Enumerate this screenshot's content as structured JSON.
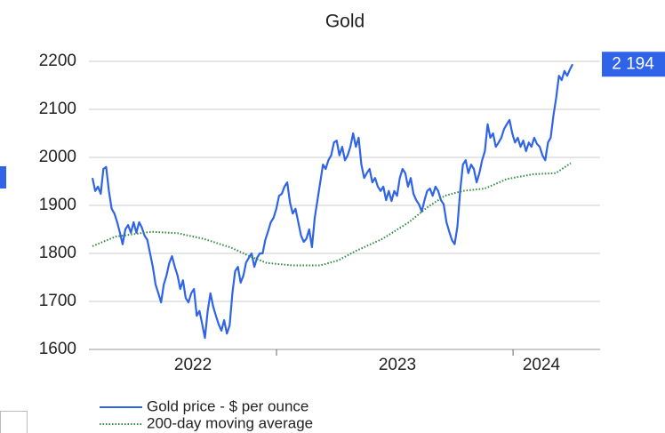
{
  "chart_data": {
    "type": "line",
    "title": "Gold",
    "ylim": [
      1600,
      2200
    ],
    "yticks": [
      1600,
      1700,
      1800,
      1900,
      2000,
      2100,
      2200
    ],
    "grid": true,
    "xlim": [
      2022.207,
      2024.368
    ],
    "xticks": [
      {
        "value": 2022.647,
        "label": "2022"
      },
      {
        "value": 2023.511,
        "label": "2023"
      },
      {
        "value": 2024.12,
        "label": "2024"
      }
    ],
    "xminor": [
      2023,
      2024
    ],
    "series": [
      {
        "name": "Gold price - $ per ounce",
        "color": "#2f64e8",
        "style": "solid",
        "last_value_label": "2 194",
        "x": [
          2022.222,
          2022.2336,
          2022.2452,
          2022.2568,
          2022.2684,
          2022.28,
          2022.2916,
          2022.3032,
          2022.3148,
          2022.3264,
          2022.338,
          2022.3496,
          2022.3612,
          2022.3728,
          2022.3844,
          2022.396,
          2022.4076,
          2022.4192,
          2022.4308,
          2022.4424,
          2022.454,
          2022.4656,
          2022.4772,
          2022.4888,
          2022.5004,
          2022.512,
          2022.5236,
          2022.5352,
          2022.5468,
          2022.5584,
          2022.57,
          2022.5816,
          2022.5932,
          2022.6048,
          2022.6164,
          2022.628,
          2022.6396,
          2022.6512,
          2022.6628,
          2022.6744,
          2022.686,
          2022.6976,
          2022.7092,
          2022.7208,
          2022.7324,
          2022.744,
          2022.7556,
          2022.7672,
          2022.7788,
          2022.7904,
          2022.802,
          2022.8136,
          2022.8252,
          2022.8368,
          2022.8484,
          2022.86,
          2022.8716,
          2022.8832,
          2022.8948,
          2022.9064,
          2022.918,
          2022.9296,
          2022.9412,
          2022.9528,
          2022.9644,
          2022.976,
          2022.9876,
          2022.9992,
          2023.0108,
          2023.0224,
          2023.034,
          2023.0456,
          2023.0572,
          2023.0688,
          2023.0804,
          2023.092,
          2023.1036,
          2023.1152,
          2023.1268,
          2023.1384,
          2023.15,
          2023.1616,
          2023.1732,
          2023.1848,
          2023.1964,
          2023.208,
          2023.2196,
          2023.2312,
          2023.2428,
          2023.2544,
          2023.266,
          2023.2776,
          2023.2892,
          2023.3008,
          2023.3124,
          2023.324,
          2023.3356,
          2023.3472,
          2023.3588,
          2023.3704,
          2023.382,
          2023.3936,
          2023.4052,
          2023.4168,
          2023.4284,
          2023.44,
          2023.4516,
          2023.4632,
          2023.4748,
          2023.4864,
          2023.498,
          2023.5096,
          2023.5212,
          2023.5328,
          2023.5444,
          2023.556,
          2023.5676,
          2023.5792,
          2023.5908,
          2023.6024,
          2023.614,
          2023.6256,
          2023.6372,
          2023.6488,
          2023.6604,
          2023.672,
          2023.6836,
          2023.6952,
          2023.7068,
          2023.7184,
          2023.73,
          2023.7416,
          2023.7532,
          2023.7648,
          2023.7764,
          2023.788,
          2023.7996,
          2023.8112,
          2023.8228,
          2023.8344,
          2023.846,
          2023.8576,
          2023.8692,
          2023.8808,
          2023.8924,
          2023.904,
          2023.9156,
          2023.9272,
          2023.9388,
          2023.9504,
          2023.962,
          2023.9736,
          2023.9852,
          2023.9968,
          2024.0084,
          2024.02,
          2024.0316,
          2024.0432,
          2024.0548,
          2024.0664,
          2024.078,
          2024.0896,
          2024.1012,
          2024.1128,
          2024.1244,
          2024.136,
          2024.1476,
          2024.1592,
          2024.1708,
          2024.1824,
          2024.194,
          2024.2056,
          2024.2172,
          2024.2288,
          2024.2404,
          2024.252
        ],
        "values": [
          1957,
          1930,
          1939,
          1924,
          1976,
          1980,
          1930,
          1893,
          1883,
          1865,
          1843,
          1819,
          1850,
          1859,
          1843,
          1865,
          1843,
          1865,
          1854,
          1837,
          1828,
          1800,
          1772,
          1735,
          1717,
          1698,
          1735,
          1754,
          1780,
          1794,
          1772,
          1754,
          1726,
          1744,
          1707,
          1698,
          1717,
          1726,
          1670,
          1680,
          1652,
          1624,
          1680,
          1717,
          1689,
          1670,
          1652,
          1639,
          1661,
          1633,
          1650,
          1717,
          1763,
          1772,
          1739,
          1754,
          1781,
          1791,
          1800,
          1772,
          1791,
          1800,
          1800,
          1828,
          1846,
          1865,
          1874,
          1893,
          1920,
          1924,
          1939,
          1948,
          1906,
          1883,
          1893,
          1865,
          1837,
          1824,
          1831,
          1850,
          1813,
          1874,
          1911,
          1948,
          1985,
          1976,
          1994,
          2004,
          2031,
          2035,
          2004,
          2022,
          1994,
          2004,
          2022,
          2050,
          2022,
          2041,
          1985,
          1957,
          1967,
          1976,
          1948,
          1957,
          1939,
          1930,
          1939,
          1911,
          1930,
          1909,
          1930,
          1920,
          1957,
          1976,
          1967,
          1939,
          1957,
          1924,
          1911,
          1902,
          1887,
          1911,
          1930,
          1935,
          1920,
          1939,
          1930,
          1911,
          1902,
          1865,
          1846,
          1828,
          1819,
          1856,
          1930,
          1985,
          1994,
          1967,
          1985,
          1976,
          1948,
          1967,
          1994,
          2013,
          2069,
          2041,
          2050,
          2022,
          2031,
          2041,
          2059,
          2069,
          2078,
          2050,
          2031,
          2041,
          2022,
          2035,
          2013,
          2031,
          2022,
          2041,
          2028,
          2022,
          2004,
          1994,
          2031,
          2041,
          2087,
          2124,
          2170,
          2161,
          2180,
          2170,
          2183,
          2194
        ]
      },
      {
        "name": "200-day moving average",
        "color": "#2e8b3e",
        "style": "dotted",
        "x": [
          2022.222,
          2022.32,
          2022.47,
          2022.583,
          2022.695,
          2022.808,
          2022.883,
          2022.959,
          2023.071,
          2023.184,
          2023.259,
          2023.335,
          2023.447,
          2023.56,
          2023.635,
          2023.711,
          2023.786,
          2023.88,
          2023.974,
          2024.086,
          2024.18,
          2024.244
        ],
        "values": [
          1815,
          1835,
          1845,
          1842,
          1830,
          1812,
          1795,
          1780,
          1775,
          1775,
          1785,
          1805,
          1830,
          1865,
          1895,
          1920,
          1930,
          1935,
          1955,
          1965,
          1967,
          1988
        ]
      }
    ]
  }
}
